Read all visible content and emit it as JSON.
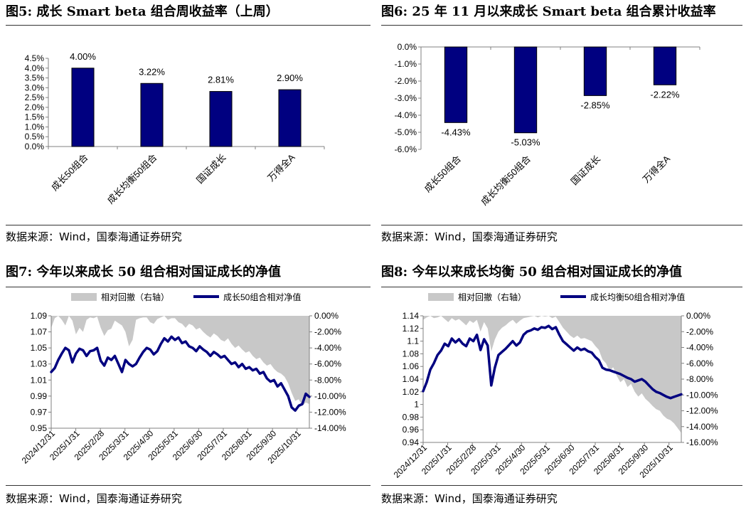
{
  "source_text": "数据来源：Wind，国泰海通证券研究",
  "panels": [
    {
      "title": "图5:  成长 Smart beta 组合周收益率（上周）"
    },
    {
      "title": "图6:  25 年 11 月以来成长 Smart beta 组合累计收益率"
    },
    {
      "title": "图7:  今年以来成长 50 组合相对国证成长的净值"
    },
    {
      "title": "图8:  今年以来成长均衡 50 组合相对国证成长的净值"
    }
  ],
  "chart_data": [
    {
      "type": "bar",
      "title": "图5:  成长 Smart beta 组合周收益率（上周）",
      "categories": [
        "成长50组合",
        "成长均衡50组合",
        "国证成长",
        "万得全A"
      ],
      "values": [
        4.0,
        3.22,
        2.81,
        2.9
      ],
      "labels": [
        "4.00%",
        "3.22%",
        "2.81%",
        "2.90%"
      ],
      "yticks": [
        "4.5%",
        "4.0%",
        "3.5%",
        "3.0%",
        "2.5%",
        "2.0%",
        "1.5%",
        "1.0%",
        "0.5%",
        "0.0%"
      ],
      "ylim": [
        0,
        4.5
      ],
      "color": "#000080"
    },
    {
      "type": "bar",
      "title": "图6:  25 年 11 月以来成长 Smart beta 组合累计收益率",
      "categories": [
        "成长50组合",
        "成长均衡50组合",
        "国证成长",
        "万得全A"
      ],
      "values": [
        -4.43,
        -5.03,
        -2.85,
        -2.22
      ],
      "labels": [
        "-4.43%",
        "-5.03%",
        "-2.85%",
        "-2.22%"
      ],
      "yticks": [
        "0.0%",
        "-1.0%",
        "-2.0%",
        "-3.0%",
        "-4.0%",
        "-5.0%",
        "-6.0%"
      ],
      "ylim": [
        -6,
        0
      ],
      "color": "#000080"
    },
    {
      "type": "line",
      "title": "图7:  今年以来成长 50 组合相对国证成长的净值",
      "legend": [
        "相对回撤（右轴）",
        "成长50组合相对净值"
      ],
      "x_ticks": [
        "2024/12/31",
        "2025/1/31",
        "2025/2/28",
        "2025/3/31",
        "2025/4/30",
        "2025/5/31",
        "2025/6/30",
        "2025/7/31",
        "2025/8/31",
        "2025/9/30",
        "2025/10/31"
      ],
      "y_left_ticks": [
        "1.09",
        "1.07",
        "1.05",
        "1.03",
        "1.01",
        "0.99",
        "0.97",
        "0.95"
      ],
      "y_right_ticks": [
        "0.00%",
        "-2.00%",
        "-4.00%",
        "-6.00%",
        "-8.00%",
        "-10.00%",
        "-12.00%",
        "-14.00%"
      ],
      "ylim_left": [
        0.95,
        1.09
      ],
      "ylim_right": [
        -14,
        0
      ],
      "net_value": [
        1.02,
        1.025,
        1.035,
        1.043,
        1.05,
        1.047,
        1.032,
        1.043,
        1.049,
        1.047,
        1.04,
        1.046,
        1.047,
        1.05,
        1.034,
        1.028,
        1.038,
        1.035,
        1.04,
        1.03,
        1.02,
        1.035,
        1.03,
        1.027,
        1.03,
        1.038,
        1.045,
        1.05,
        1.048,
        1.042,
        1.046,
        1.055,
        1.062,
        1.058,
        1.064,
        1.06,
        1.063,
        1.056,
        1.058,
        1.052,
        1.05,
        1.046,
        1.052,
        1.048,
        1.045,
        1.04,
        1.045,
        1.042,
        1.038,
        1.04,
        1.035,
        1.03,
        1.032,
        1.026,
        1.03,
        1.024,
        1.026,
        1.022,
        1.024,
        1.018,
        1.02,
        1.012,
        1.008,
        1.01,
        1.002,
        1.006,
        0.998,
        0.99,
        0.976,
        0.972,
        0.978,
        0.98,
        0.993,
        0.989
      ],
      "drawdown": [
        -1.5,
        -0.3,
        0,
        -0.5,
        -1.2,
        0,
        -0.6,
        -2.3,
        -1.5,
        -2.0,
        -0.5,
        -0.2,
        -0.3,
        -0.1,
        -1.5,
        -2.5,
        -1.8,
        -1.6,
        -0.6,
        -0.9,
        -1.2,
        -2.0,
        -3.8,
        -3.0,
        -0.5,
        -0.3,
        -0.2,
        -0.2,
        -0.8,
        -1.0,
        -0.4,
        -0.2,
        0,
        -0.5,
        -0.3,
        -0.3,
        -0.8,
        -1.0,
        -1.5,
        -1.0,
        -1.2,
        -1.7,
        -1.5,
        -2.0,
        -2.4,
        -2.7,
        -2.2,
        -2.5,
        -3.0,
        -3.2,
        -2.8,
        -3.5,
        -4.0,
        -3.7,
        -4.2,
        -4.6,
        -4.4,
        -5.0,
        -5.4,
        -5.2,
        -5.8,
        -6.2,
        -6.0,
        -6.6,
        -7.0,
        -7.2,
        -7.6,
        -8.4,
        -9.6,
        -10.6,
        -10.4,
        -11.2,
        -10.8,
        -11.0
      ]
    },
    {
      "type": "line",
      "title": "图8:  今年以来成长均衡 50 组合相对国证成长的净值",
      "legend": [
        "相对回撤（右轴）",
        "成长均衡50组合相对净值"
      ],
      "x_ticks": [
        "2024/12/31",
        "2025/1/31",
        "2025/2/28",
        "2025/3/31",
        "2025/4/30",
        "2025/5/31",
        "2025/6/30",
        "2025/7/31",
        "2025/8/31",
        "2025/9/30",
        "2025/10/31"
      ],
      "y_left_ticks": [
        "1.14",
        "1.12",
        "1.1",
        "1.08",
        "1.06",
        "1.04",
        "1.02",
        "1",
        "0.98",
        "0.96",
        "0.94"
      ],
      "y_right_ticks": [
        "0.00%",
        "-2.00%",
        "-4.00%",
        "-6.00%",
        "-8.00%",
        "-10.00%",
        "-12.00%",
        "-14.00%",
        "-16.00%"
      ],
      "ylim_left": [
        0.94,
        1.14
      ],
      "ylim_right": [
        -16,
        0
      ],
      "net_value": [
        1.021,
        1.035,
        1.055,
        1.065,
        1.078,
        1.085,
        1.096,
        1.092,
        1.104,
        1.098,
        1.103,
        1.096,
        1.092,
        1.104,
        1.1,
        1.11,
        1.086,
        1.103,
        1.093,
        1.03,
        1.058,
        1.078,
        1.083,
        1.088,
        1.094,
        1.1,
        1.093,
        1.098,
        1.11,
        1.115,
        1.117,
        1.12,
        1.118,
        1.122,
        1.121,
        1.124,
        1.119,
        1.122,
        1.11,
        1.1,
        1.095,
        1.09,
        1.085,
        1.09,
        1.086,
        1.088,
        1.084,
        1.082,
        1.075,
        1.07,
        1.058,
        1.055,
        1.054,
        1.052,
        1.05,
        1.048,
        1.045,
        1.042,
        1.04,
        1.036,
        1.038,
        1.04,
        1.036,
        1.03,
        1.024,
        1.02,
        1.018,
        1.015,
        1.012,
        1.01,
        1.012,
        1.014,
        1.016
      ],
      "drawdown": [
        -0.5,
        -0.2,
        0,
        -0.3,
        -0.2,
        0,
        -0.4,
        -0.8,
        -0.3,
        -0.6,
        -0.4,
        -0.8,
        -1.2,
        -0.6,
        -0.9,
        -0.5,
        -2.0,
        -0.8,
        -1.6,
        -4.5,
        -3.0,
        -2.0,
        -1.5,
        -1.2,
        -0.8,
        -0.5,
        -1.0,
        -0.6,
        -0.3,
        -0.2,
        -0.1,
        0,
        -0.2,
        0,
        -0.1,
        0,
        -0.3,
        -0.1,
        -0.8,
        -1.5,
        -2.0,
        -2.5,
        -2.8,
        -2.5,
        -2.9,
        -2.8,
        -3.0,
        -3.2,
        -3.8,
        -4.3,
        -5.5,
        -6.0,
        -7.0,
        -6.5,
        -7.6,
        -8.4,
        -8.0,
        -9.0,
        -8.6,
        -9.6,
        -10.2,
        -9.8,
        -10.5,
        -10.9,
        -11.4,
        -11.8,
        -12.0,
        -12.6,
        -13.0,
        -13.2,
        -13.6,
        -14.2,
        -14.8
      ]
    }
  ]
}
